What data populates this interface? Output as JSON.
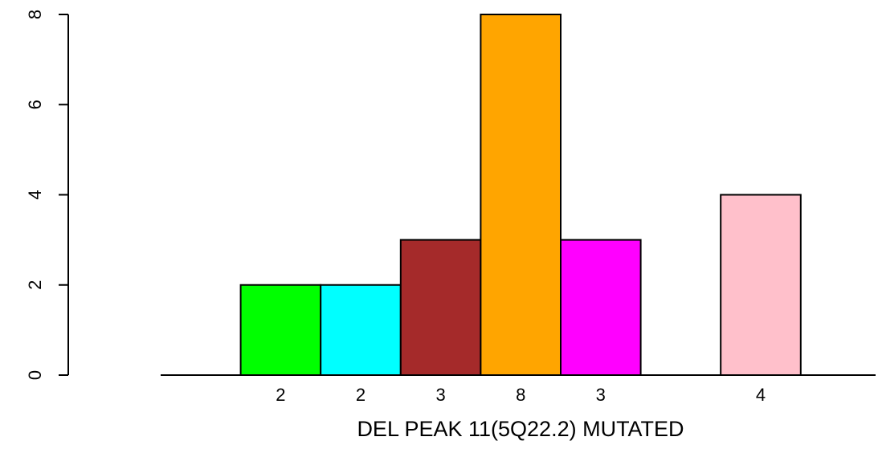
{
  "chart_data": {
    "type": "bar",
    "xlabel": "DEL PEAK 11(5Q22.2) MUTATED",
    "ylabel": "",
    "ylim": [
      0,
      8
    ],
    "yticks": [
      0,
      2,
      4,
      6,
      8
    ],
    "slots": 8,
    "bars": [
      {
        "slot": 1,
        "value": 2,
        "label": "2",
        "color": "#00ff00"
      },
      {
        "slot": 2,
        "value": 2,
        "label": "2",
        "color": "#00ffff"
      },
      {
        "slot": 3,
        "value": 3,
        "label": "3",
        "color": "#a52a2a"
      },
      {
        "slot": 4,
        "value": 8,
        "label": "8",
        "color": "#ffa500"
      },
      {
        "slot": 5,
        "value": 3,
        "label": "3",
        "color": "#ff00ff"
      },
      {
        "slot": 7,
        "value": 4,
        "label": "4",
        "color": "#ffc0cb"
      }
    ],
    "grid": false,
    "legend": "none"
  }
}
